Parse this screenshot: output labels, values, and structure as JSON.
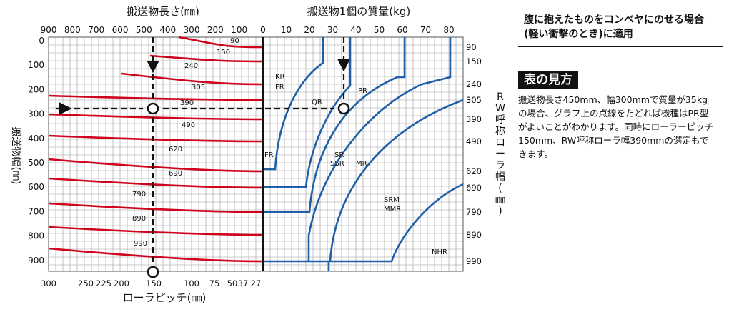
{
  "note": "腹に抱えたものをコンベヤにのせる場合(軽い衝撃のとき)に適用",
  "howto_title": "表の見方",
  "howto_text": "搬送物長さ450mm、幅300mmで質量が35kgの場合、グラフ上の点線をたどれば機種はPR型がよいことがわかります。同時にローラーピッチ150mm、RW呼称ローラ幅390mmの選定もできます。",
  "chart_data": {
    "type": "line",
    "title_length": "搬送物長さ(㎜)",
    "title_mass": "搬送物1個の質量(kg)",
    "title_pitch": "ローラピッチ(㎜)",
    "ylabel_left": "搬送物幅(㎜)",
    "ylabel_right": "RW呼称ローラ幅(㎜)",
    "length_ticks": [
      "900",
      "800",
      "700",
      "600",
      "500",
      "400",
      "300",
      "200",
      "100",
      "0"
    ],
    "mass_ticks": [
      "0",
      "10",
      "20",
      "30",
      "40",
      "50",
      "60",
      "70",
      "80"
    ],
    "width_ticks": [
      "0",
      "100",
      "200",
      "300",
      "400",
      "500",
      "600",
      "700",
      "800",
      "900"
    ],
    "pitch_ticks": [
      "300",
      "250",
      "225",
      "200",
      "150",
      "100",
      "75",
      "50",
      "37",
      "27"
    ],
    "rw_ticks": [
      "90",
      "150",
      "240",
      "305",
      "390",
      "490",
      "620",
      "690",
      "790",
      "890",
      "990"
    ],
    "rw_curve_labels": [
      "90",
      "150",
      "240",
      "305",
      "390",
      "490",
      "620",
      "690",
      "790",
      "890",
      "990"
    ],
    "model_labels": [
      "KR",
      "FR",
      "QR",
      "PR",
      "FR",
      "SR",
      "SSR",
      "MR",
      "SRM",
      "MMR",
      "NHR"
    ],
    "example": {
      "length_mm": 450,
      "width_mm": 300,
      "mass_kg": 35,
      "pitch_mm": 150,
      "rw_mm": 390,
      "model": "PR"
    },
    "curve_color": "#d0021b",
    "limit_color": "#1f5fa8"
  }
}
